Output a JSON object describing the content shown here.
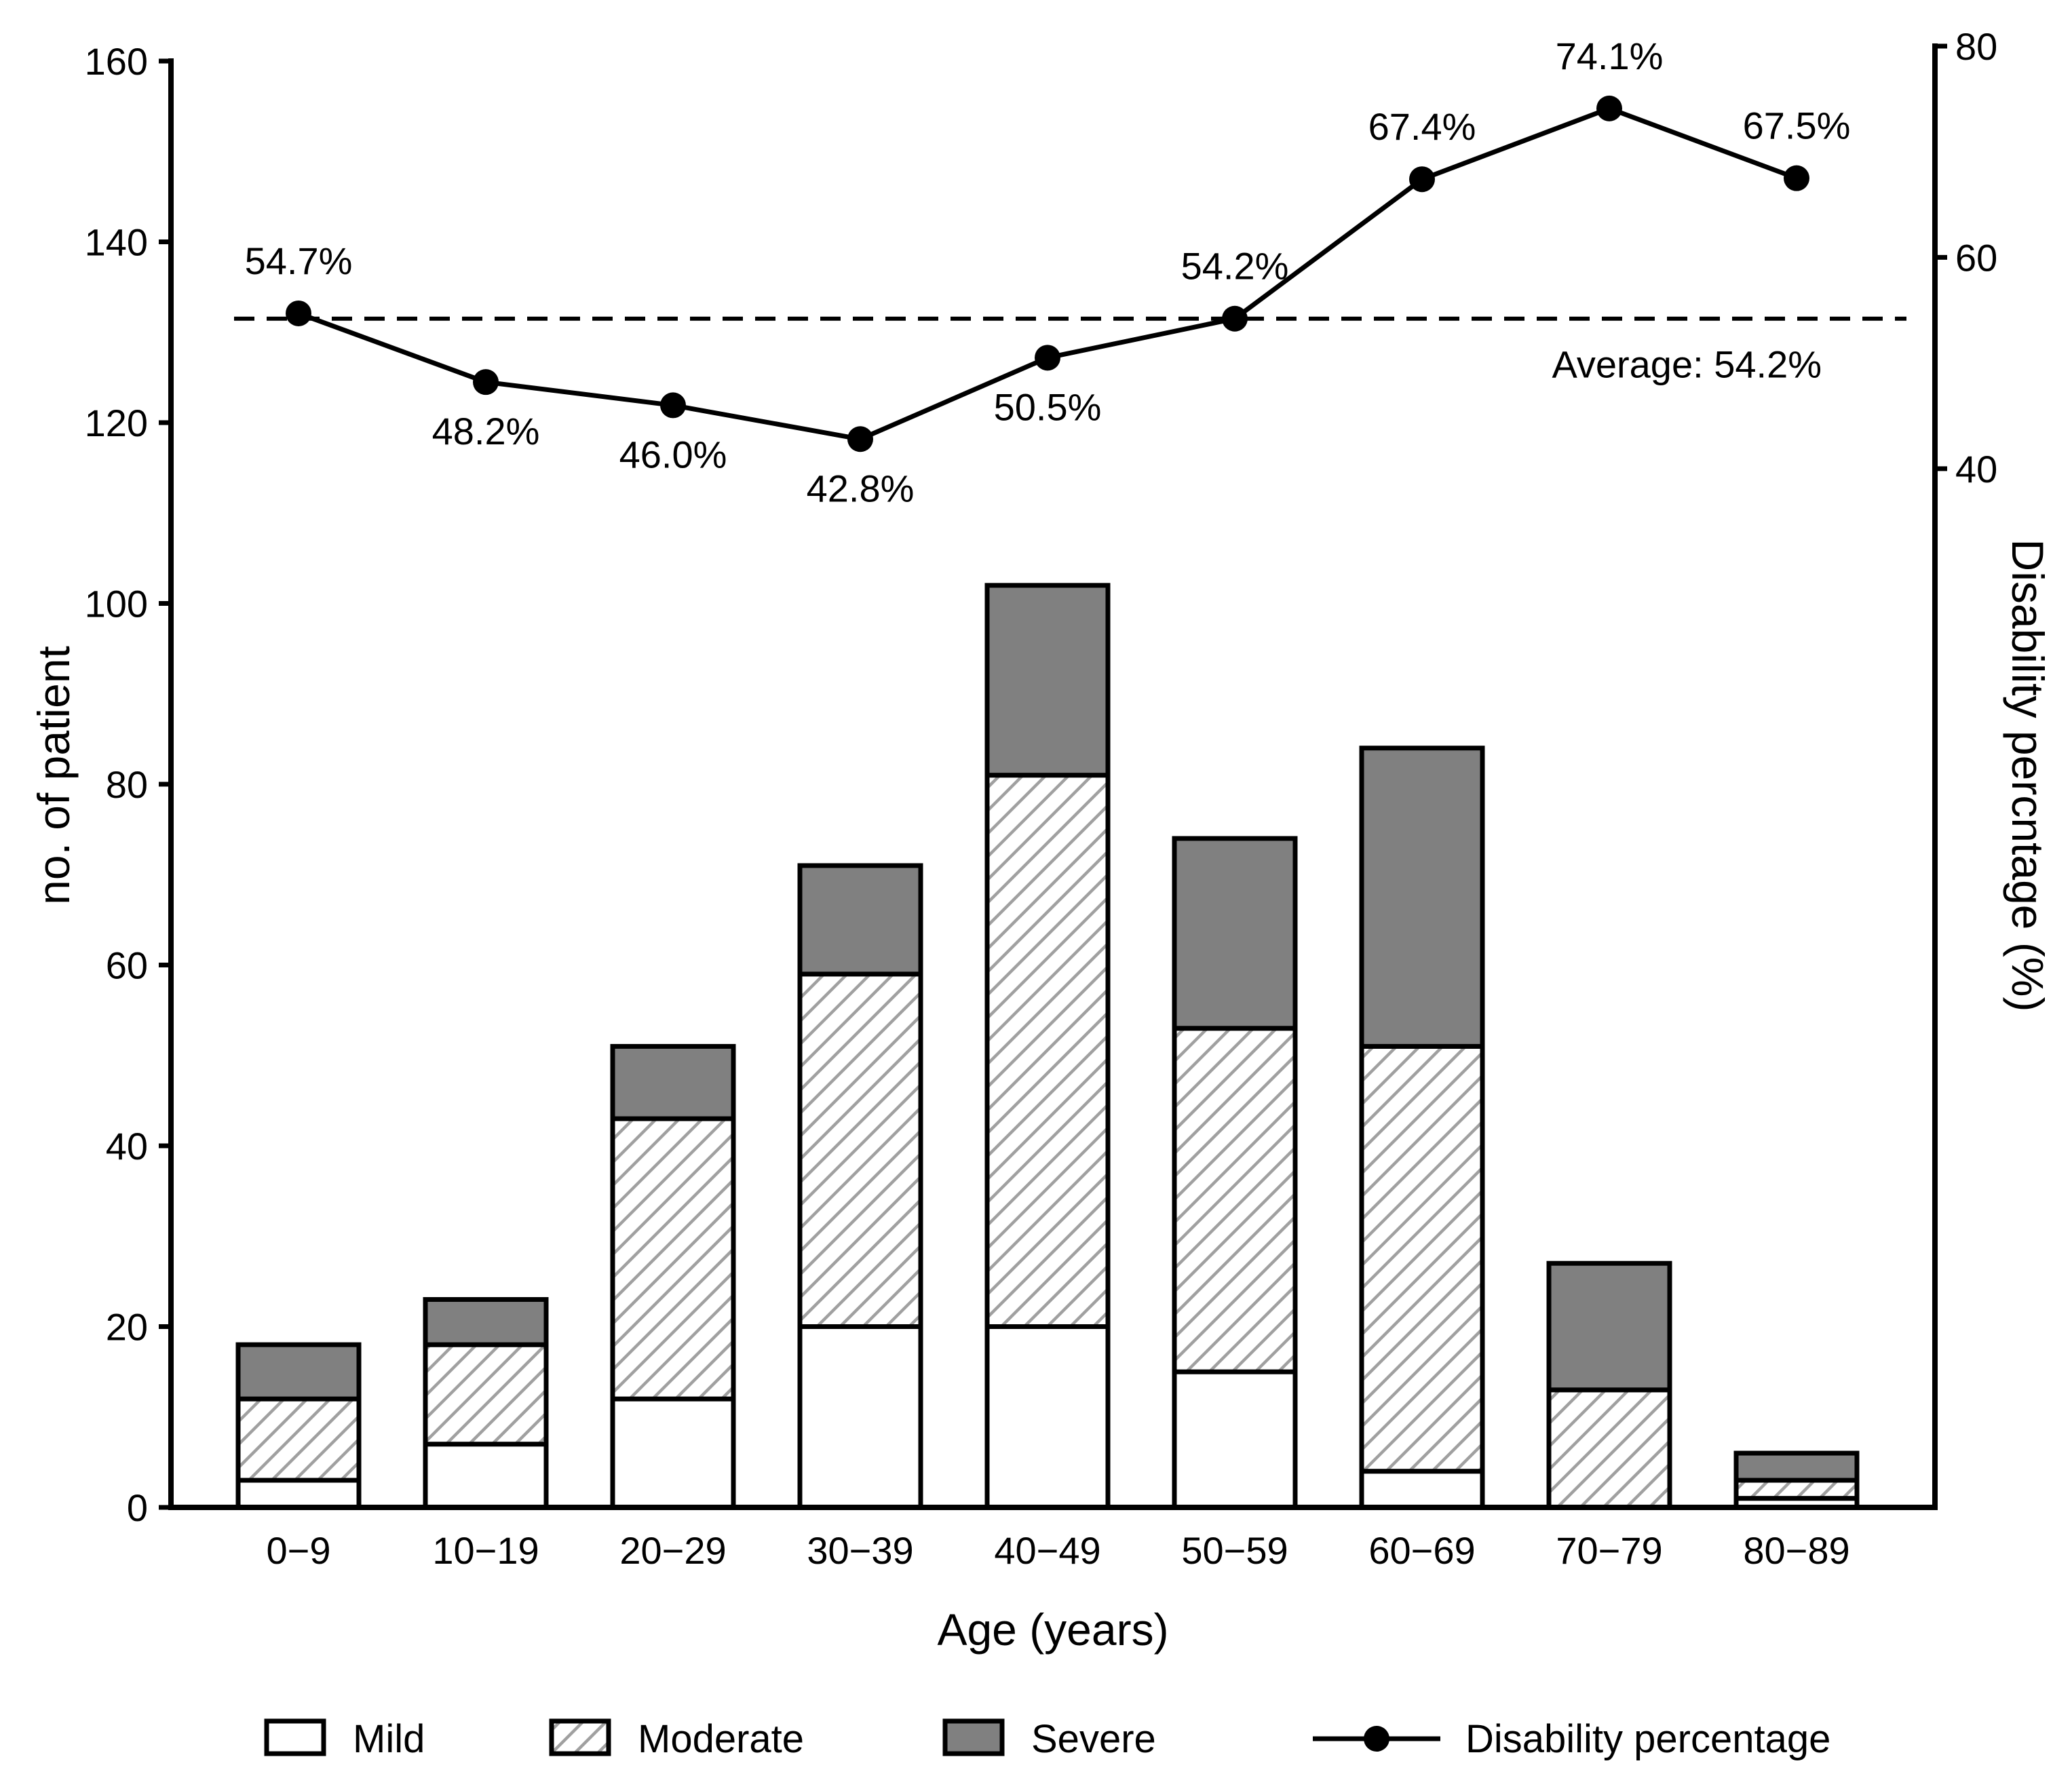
{
  "chart_data": {
    "type": "bar",
    "stacked": true,
    "categories": [
      "0−9",
      "10−19",
      "20−29",
      "30−39",
      "40−49",
      "50−59",
      "60−69",
      "70−79",
      "80−89"
    ],
    "series": [
      {
        "name": "Mild",
        "values": [
          3,
          7,
          12,
          20,
          20,
          15,
          4,
          0,
          1
        ],
        "color": "#ffffff",
        "pattern": "none"
      },
      {
        "name": "Moderate",
        "values": [
          9,
          11,
          31,
          39,
          61,
          38,
          47,
          13,
          2
        ],
        "color": "#ffffff",
        "pattern": "diagonal-hatch"
      },
      {
        "name": "Severe",
        "values": [
          6,
          5,
          8,
          12,
          21,
          21,
          33,
          14,
          3
        ],
        "color": "#808080",
        "pattern": "none"
      }
    ],
    "line_series": {
      "name": "Disability percentage",
      "axis": "right",
      "values": [
        54.7,
        48.2,
        46.0,
        42.8,
        50.5,
        54.2,
        67.4,
        74.1,
        67.5
      ],
      "labels": [
        "54.7%",
        "48.2%",
        "46.0%",
        "42.8%",
        "50.5%",
        "54.2%",
        "67.4%",
        "74.1%",
        "67.5%"
      ]
    },
    "average": {
      "value": 54.2,
      "label": "Average: 54.2%"
    },
    "xlabel": "Age (years)",
    "ylabel": "no. of patient",
    "y2label": "Disability percntage (%)",
    "ylim": [
      0,
      160
    ],
    "yticks": [
      0,
      20,
      40,
      60,
      80,
      100,
      120,
      140,
      160
    ],
    "y2lim": [
      -58.33,
      80
    ],
    "y2ticks": [
      40,
      60,
      80
    ],
    "legend": {
      "position": "bottom",
      "items": [
        "Mild",
        "Moderate",
        "Severe",
        "Disability percentage"
      ]
    },
    "colors": {
      "severe": "#808080",
      "hatch": "#a0a0a0",
      "axis": "#000000"
    }
  }
}
